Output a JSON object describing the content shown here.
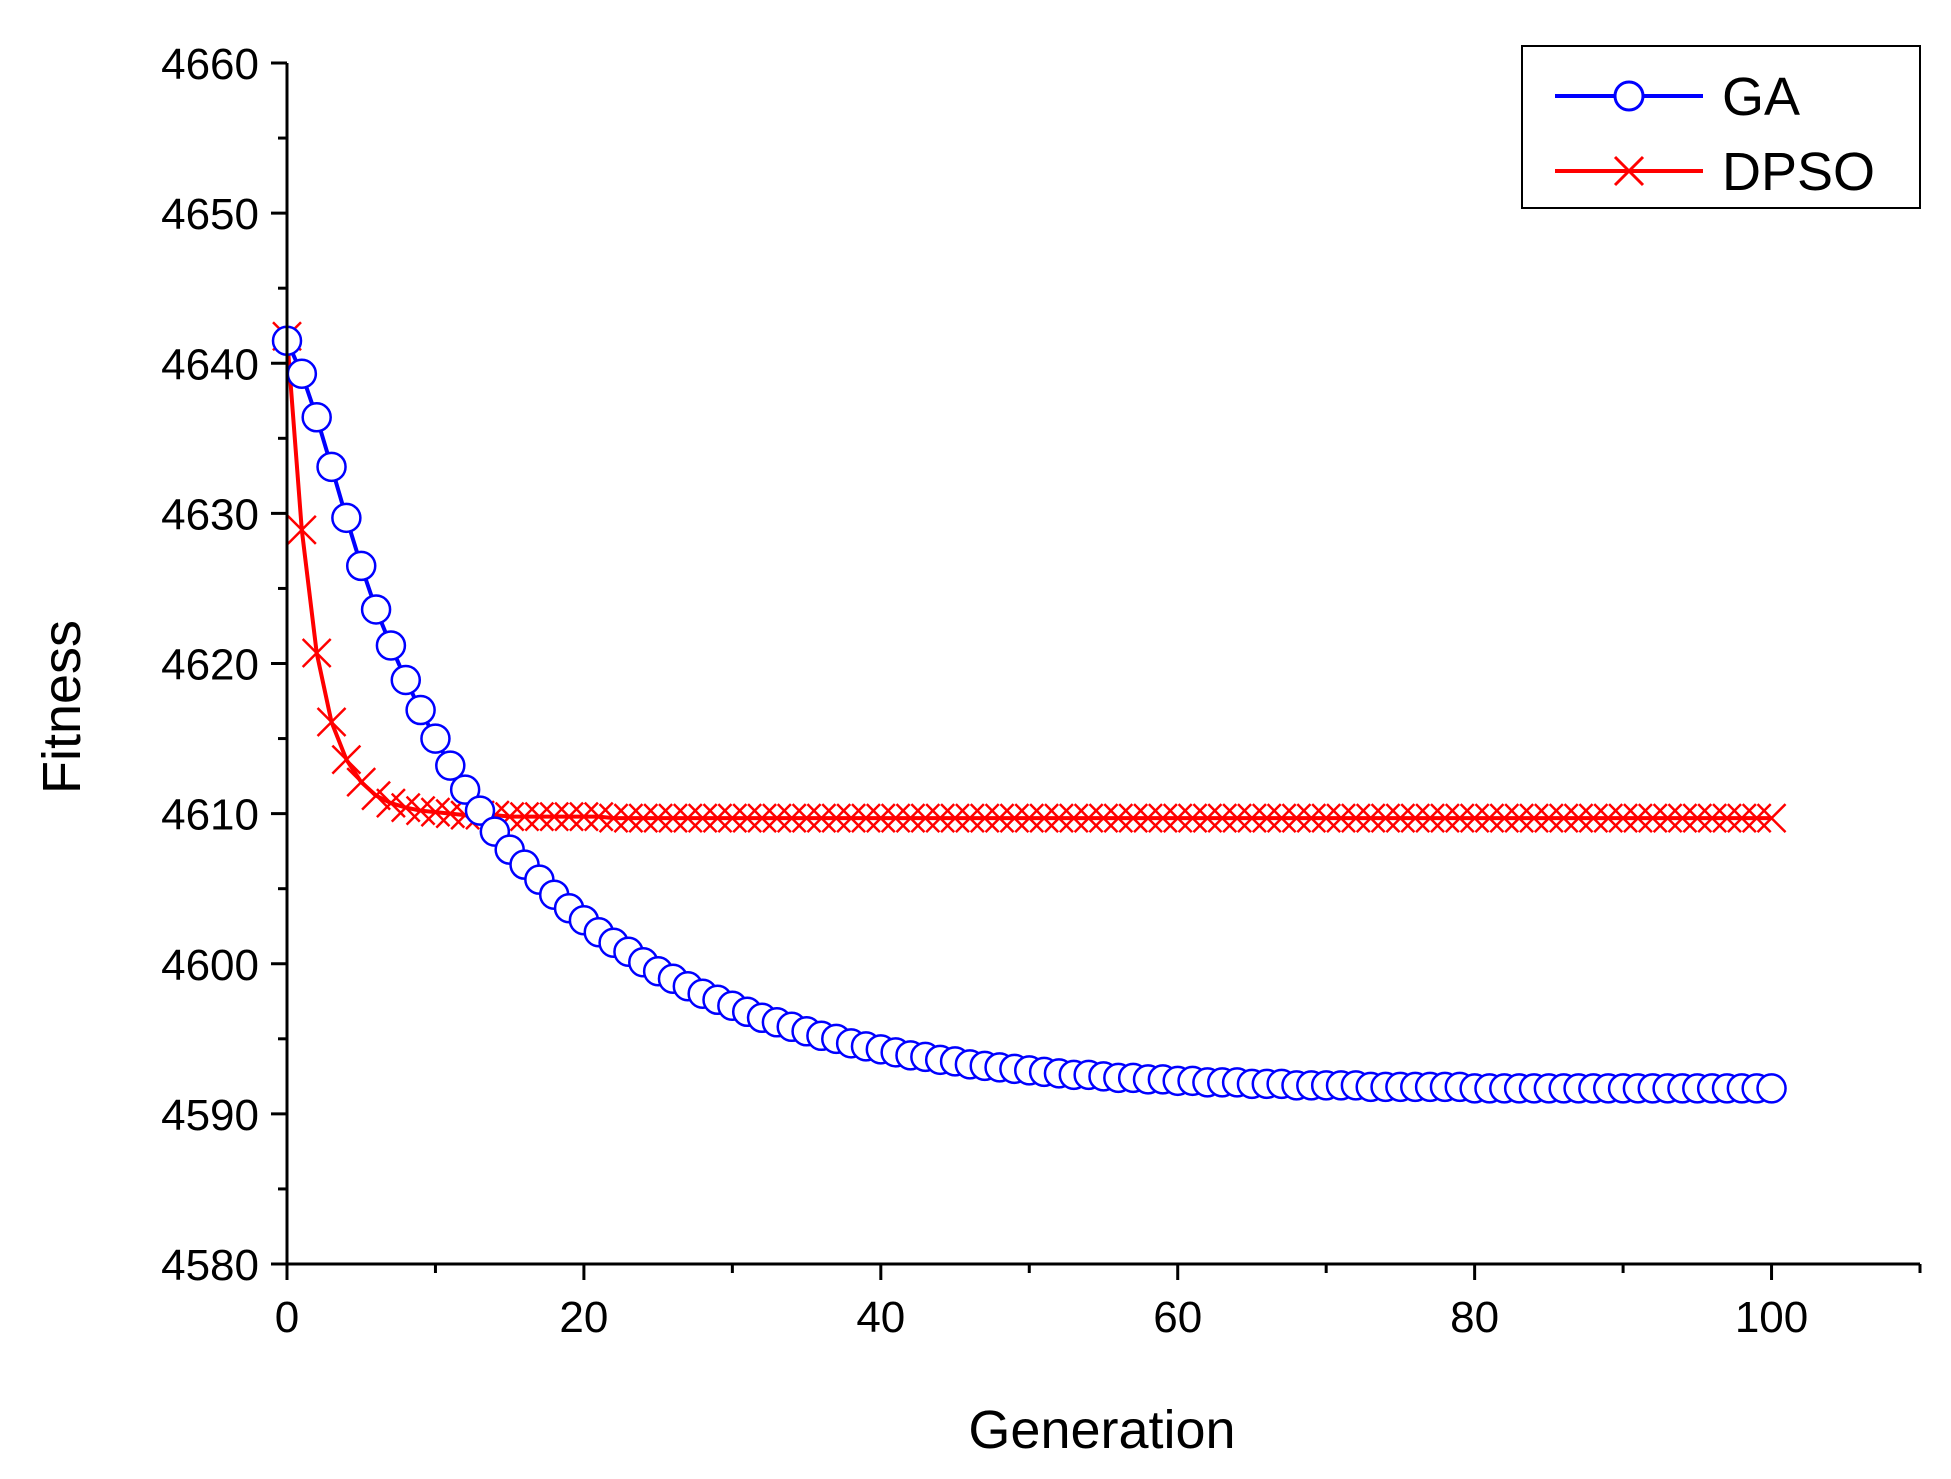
{
  "chart_data": {
    "type": "line",
    "title": "",
    "xlabel": "Generation",
    "ylabel": "Fitness",
    "xlim": [
      0,
      110
    ],
    "ylim": [
      4580,
      4660
    ],
    "xticks": [
      0,
      20,
      40,
      60,
      80,
      100
    ],
    "xticks_minor": [
      10,
      30,
      50,
      70,
      90,
      110
    ],
    "yticks": [
      4580,
      4590,
      4600,
      4610,
      4620,
      4630,
      4640,
      4650,
      4660
    ],
    "xtick_labels": [
      "0",
      "20",
      "40",
      "60",
      "80",
      "100"
    ],
    "ytick_labels": [
      "4580",
      "4590",
      "4600",
      "4610",
      "4620",
      "4630",
      "4640",
      "4650",
      "4660"
    ],
    "grid": false,
    "legend_position": "top-right",
    "x": [
      0,
      1,
      2,
      3,
      4,
      5,
      6,
      7,
      8,
      9,
      10,
      11,
      12,
      13,
      14,
      15,
      16,
      17,
      18,
      19,
      20,
      21,
      22,
      23,
      24,
      25,
      26,
      27,
      28,
      29,
      30,
      31,
      32,
      33,
      34,
      35,
      36,
      37,
      38,
      39,
      40,
      41,
      42,
      43,
      44,
      45,
      46,
      47,
      48,
      49,
      50,
      51,
      52,
      53,
      54,
      55,
      56,
      57,
      58,
      59,
      60,
      61,
      62,
      63,
      64,
      65,
      66,
      67,
      68,
      69,
      70,
      71,
      72,
      73,
      74,
      75,
      76,
      77,
      78,
      79,
      80,
      81,
      82,
      83,
      84,
      85,
      86,
      87,
      88,
      89,
      90,
      91,
      92,
      93,
      94,
      95,
      96,
      97,
      98,
      99,
      100
    ],
    "series": [
      {
        "name": "GA",
        "color": "#0000ff",
        "marker": "circle",
        "values": [
          4641.5,
          4639.3,
          4636.4,
          4633.1,
          4629.7,
          4626.5,
          4623.6,
          4621.2,
          4618.9,
          4616.9,
          4615.0,
          4613.2,
          4611.6,
          4610.2,
          4608.8,
          4607.6,
          4606.6,
          4605.6,
          4604.6,
          4603.7,
          4602.9,
          4602.1,
          4601.4,
          4600.8,
          4600.1,
          4599.5,
          4599.0,
          4598.5,
          4598.0,
          4597.6,
          4597.2,
          4596.8,
          4596.4,
          4596.1,
          4595.8,
          4595.5,
          4595.2,
          4595.0,
          4594.7,
          4594.5,
          4594.3,
          4594.1,
          4593.9,
          4593.8,
          4593.6,
          4593.5,
          4593.3,
          4593.2,
          4593.1,
          4593.0,
          4592.9,
          4592.8,
          4592.7,
          4592.6,
          4592.6,
          4592.5,
          4592.4,
          4592.4,
          4592.3,
          4592.3,
          4592.2,
          4592.2,
          4592.1,
          4592.1,
          4592.1,
          4592.0,
          4592.0,
          4592.0,
          4591.9,
          4591.9,
          4591.9,
          4591.9,
          4591.9,
          4591.8,
          4591.8,
          4591.8,
          4591.8,
          4591.8,
          4591.8,
          4591.8,
          4591.7,
          4591.7,
          4591.7,
          4591.7,
          4591.7,
          4591.7,
          4591.7,
          4591.7,
          4591.7,
          4591.7,
          4591.7,
          4591.7,
          4591.7,
          4591.7,
          4591.7,
          4591.7,
          4591.7,
          4591.7,
          4591.7,
          4591.7,
          4591.7
        ]
      },
      {
        "name": "DPSO",
        "color": "#ff0000",
        "marker": "x",
        "values": [
          4641.8,
          4628.9,
          4620.7,
          4616.1,
          4613.6,
          4612.1,
          4611.2,
          4610.7,
          4610.4,
          4610.2,
          4610.1,
          4610.0,
          4609.9,
          4609.9,
          4609.9,
          4609.8,
          4609.8,
          4609.8,
          4609.8,
          4609.8,
          4609.8,
          4609.8,
          4609.7,
          4609.7,
          4609.7,
          4609.7,
          4609.7,
          4609.7,
          4609.7,
          4609.7,
          4609.7,
          4609.7,
          4609.7,
          4609.7,
          4609.7,
          4609.7,
          4609.7,
          4609.7,
          4609.7,
          4609.7,
          4609.7,
          4609.7,
          4609.7,
          4609.7,
          4609.7,
          4609.7,
          4609.7,
          4609.7,
          4609.7,
          4609.7,
          4609.7,
          4609.7,
          4609.7,
          4609.7,
          4609.7,
          4609.7,
          4609.7,
          4609.7,
          4609.7,
          4609.7,
          4609.7,
          4609.7,
          4609.7,
          4609.7,
          4609.7,
          4609.7,
          4609.7,
          4609.7,
          4609.7,
          4609.7,
          4609.7,
          4609.7,
          4609.7,
          4609.7,
          4609.7,
          4609.7,
          4609.7,
          4609.7,
          4609.7,
          4609.7,
          4609.7,
          4609.7,
          4609.7,
          4609.7,
          4609.7,
          4609.7,
          4609.7,
          4609.7,
          4609.7,
          4609.7,
          4609.7,
          4609.7,
          4609.7,
          4609.7,
          4609.7,
          4609.7,
          4609.7,
          4609.7,
          4609.7,
          4609.7,
          4609.7
        ]
      }
    ]
  }
}
